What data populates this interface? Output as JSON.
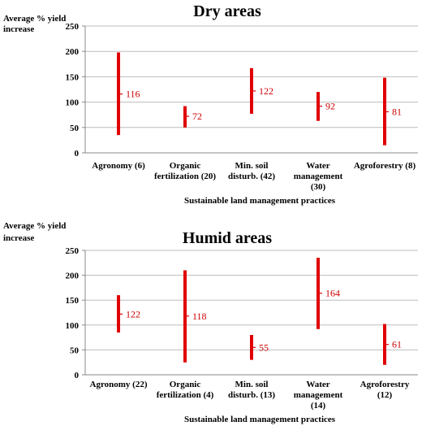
{
  "chart_data": [
    {
      "type": "range",
      "title": "Dry areas",
      "ylabel": "Average % yield increase",
      "xlabel": "Sustainable land management practices",
      "ylim": [
        0,
        250
      ],
      "yticks": [
        "0",
        "50",
        "100",
        "150",
        "200",
        "250"
      ],
      "grid": true,
      "bar_color": "#e00000",
      "categories": [
        [
          "Agronomy (6)"
        ],
        [
          "Organic",
          "fertilization (20)"
        ],
        [
          "Min. soil",
          "disturb. (42)"
        ],
        [
          "Water",
          "management",
          "(30)"
        ],
        [
          "Agroforestry (8)"
        ]
      ],
      "low": [
        35,
        50,
        77,
        63,
        15
      ],
      "high": [
        198,
        92,
        167,
        120,
        148
      ],
      "mean": [
        116,
        72,
        122,
        92,
        81
      ]
    },
    {
      "type": "range",
      "title": "Humid  areas",
      "ylabel": "Average % yield increase",
      "xlabel": "Sustainable land management practices",
      "ylim": [
        0,
        250
      ],
      "yticks": [
        "0",
        "50",
        "100",
        "150",
        "200",
        "250"
      ],
      "grid": true,
      "bar_color": "#e00000",
      "categories": [
        [
          "Agronomy (22)"
        ],
        [
          "Organic",
          "fertilization  (4)"
        ],
        [
          "Min. soil",
          "disturb.  (13)"
        ],
        [
          "Water",
          "management",
          "(14)"
        ],
        [
          "Agroforestry",
          "(12)"
        ]
      ],
      "low": [
        85,
        25,
        30,
        92,
        20
      ],
      "high": [
        160,
        210,
        80,
        235,
        102
      ],
      "mean": [
        122,
        118,
        55,
        164,
        61
      ]
    }
  ]
}
